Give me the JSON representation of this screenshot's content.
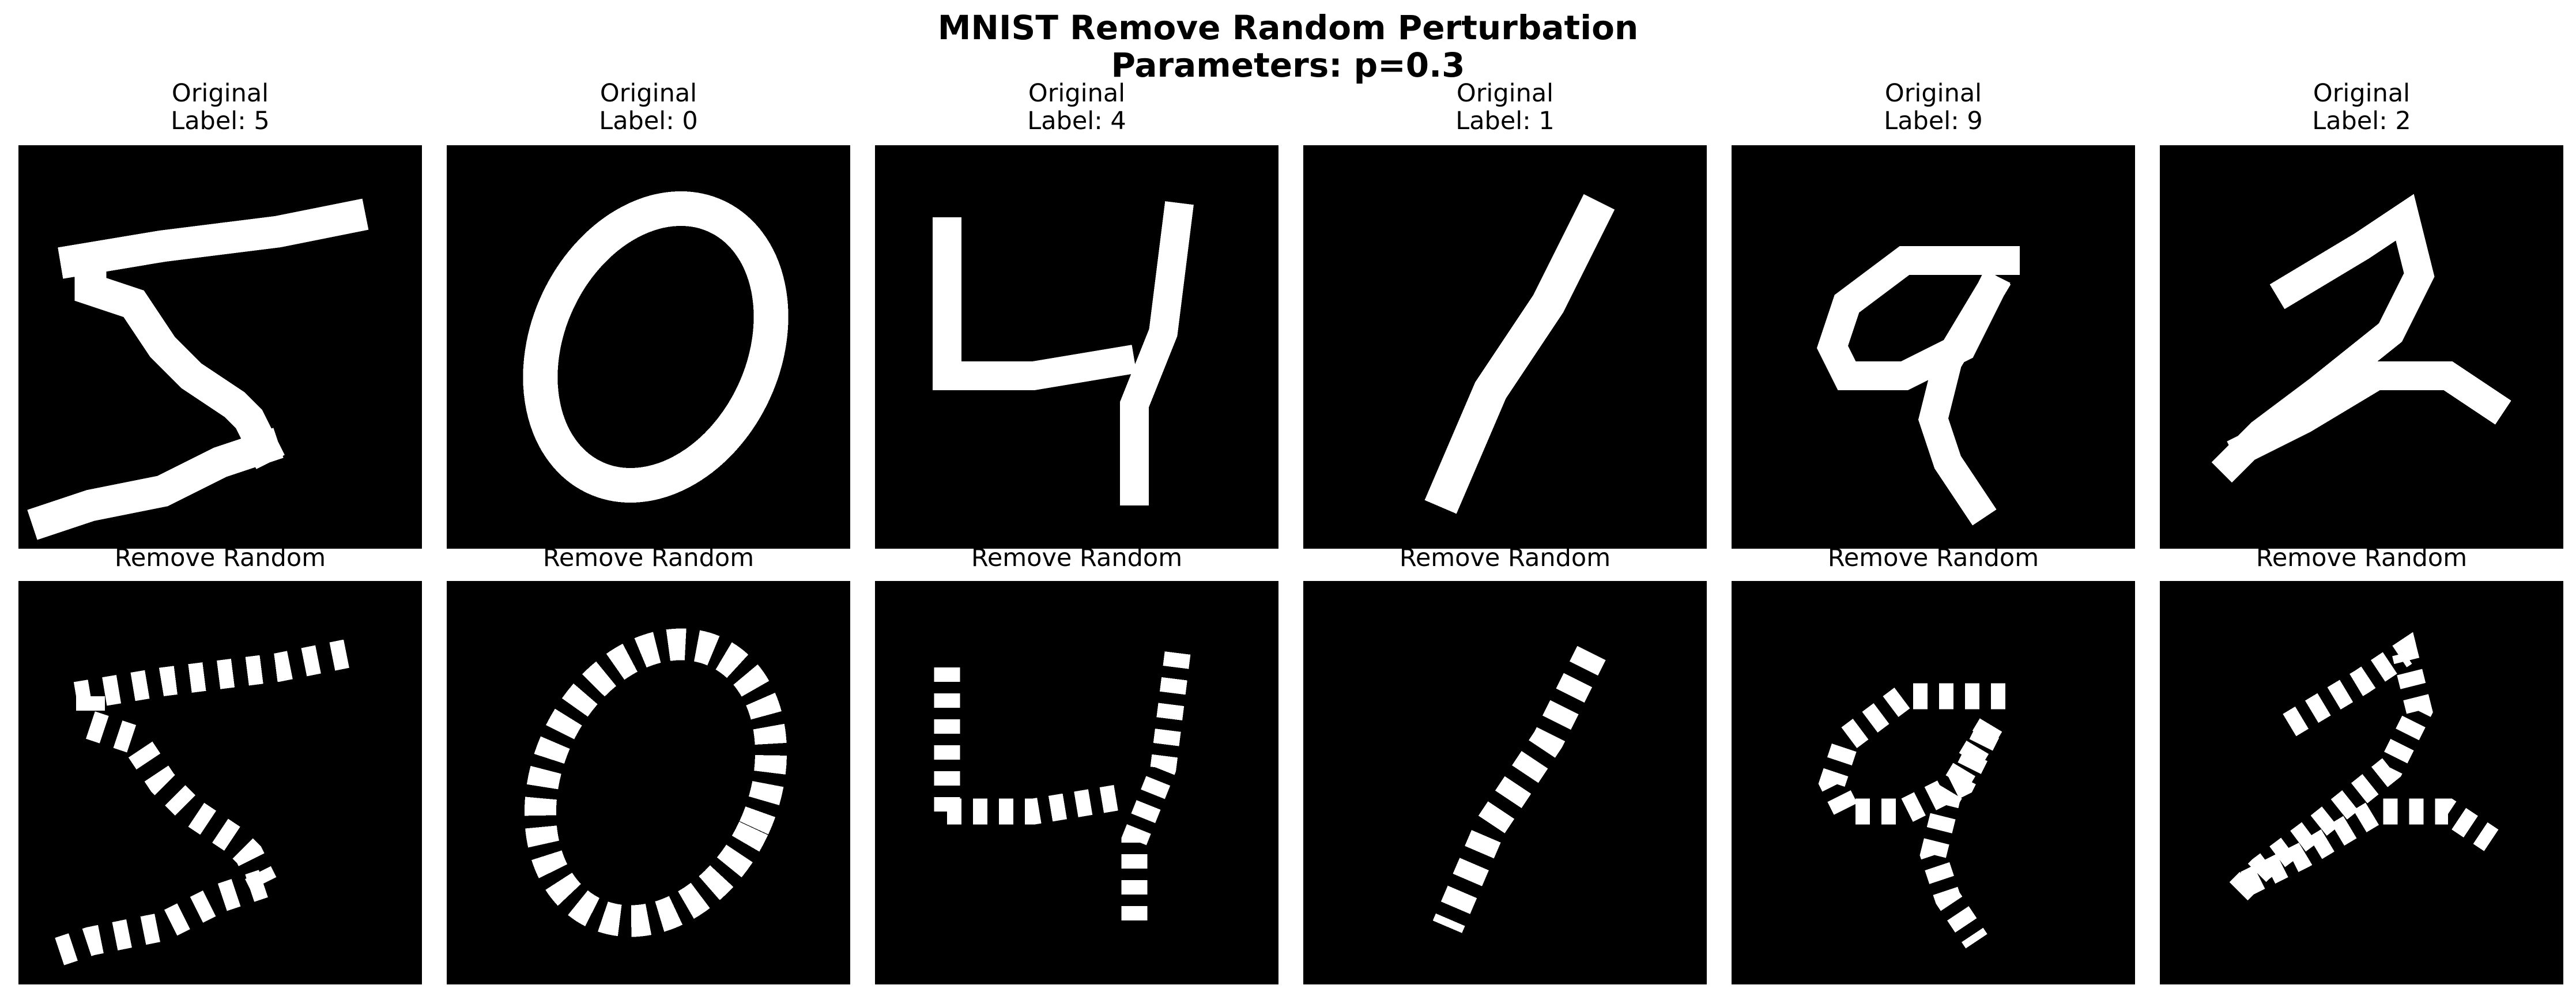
{
  "figure": {
    "title_line1": "MNIST Remove Random Perturbation",
    "title_line2": "Parameters: p=0.3"
  },
  "columns": [
    {
      "original_title": "Original",
      "label_text": "Label: 5",
      "perturbed_title": "Remove Random"
    },
    {
      "original_title": "Original",
      "label_text": "Label: 0",
      "perturbed_title": "Remove Random"
    },
    {
      "original_title": "Original",
      "label_text": "Label: 4",
      "perturbed_title": "Remove Random"
    },
    {
      "original_title": "Original",
      "label_text": "Label: 1",
      "perturbed_title": "Remove Random"
    },
    {
      "original_title": "Original",
      "label_text": "Label: 9",
      "perturbed_title": "Remove Random"
    },
    {
      "original_title": "Original",
      "label_text": "Label: 2",
      "perturbed_title": "Remove Random"
    }
  ],
  "colors": {
    "background": "#000000",
    "stroke": "#ffffff",
    "page": "#ffffff"
  }
}
